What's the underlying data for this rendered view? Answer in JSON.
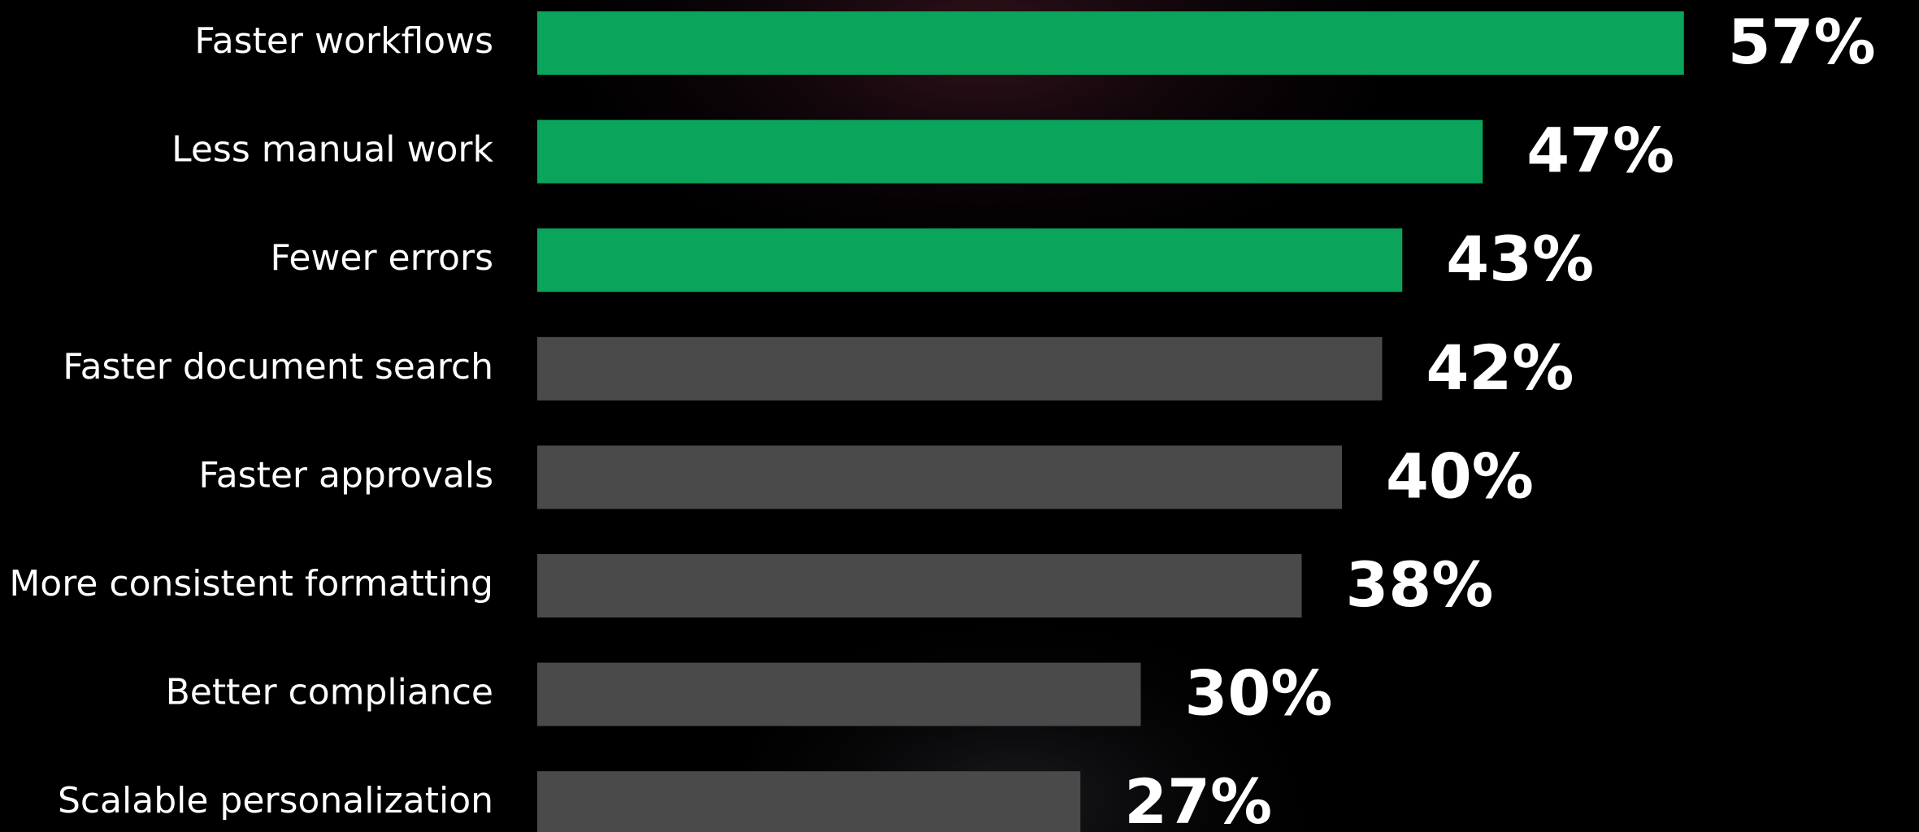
{
  "chart_data": {
    "type": "bar",
    "orientation": "horizontal",
    "categories": [
      "Faster workflows",
      "Less manual work",
      "Fewer errors",
      "Faster document search",
      "Faster approvals",
      "More consistent formatting",
      "Better compliance",
      "Scalable personalization"
    ],
    "values": [
      57,
      47,
      43,
      42,
      40,
      38,
      30,
      27
    ],
    "value_labels": [
      "57%",
      "47%",
      "43%",
      "42%",
      "40%",
      "38%",
      "30%",
      "27%"
    ],
    "colors": [
      "#0aa45b",
      "#0aa45b",
      "#0aa45b",
      "#4a4a4a",
      "#4a4a4a",
      "#4a4a4a",
      "#4a4a4a",
      "#4a4a4a"
    ]
  }
}
